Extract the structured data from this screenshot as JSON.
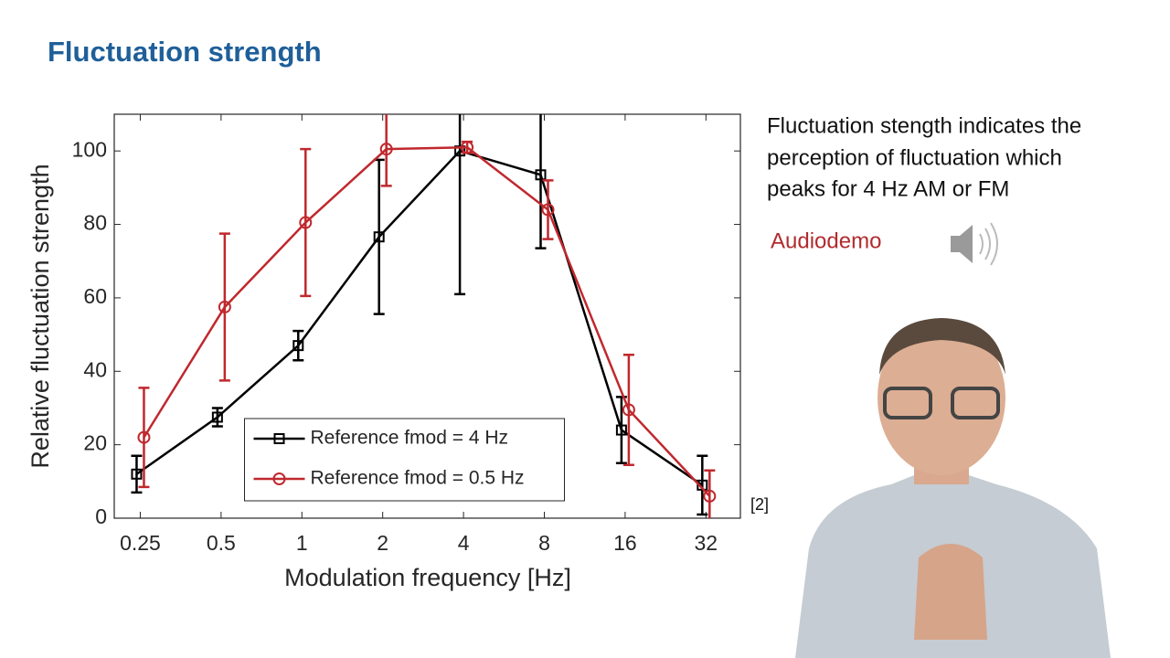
{
  "slide": {
    "title": "Fluctuation strength",
    "text_lines": [
      "Fluctuation stength indicates the",
      "perception of fluctuation  which",
      "peaks for 4 Hz AM or FM"
    ],
    "audio_link": "Audiodemo",
    "citation": "[2]"
  },
  "chart_data": {
    "type": "line",
    "x_label": "Modulation frequency [Hz]",
    "y_label": "Relative fluctuation strength",
    "x": [
      0.25,
      0.5,
      1,
      2,
      4,
      8,
      16,
      32
    ],
    "xscale": "log",
    "xlim": [
      0.2,
      43
    ],
    "xticks": [
      0.25,
      0.5,
      1,
      2,
      4,
      8,
      16,
      32
    ],
    "ylim": [
      0,
      110
    ],
    "yticks": [
      0,
      20,
      40,
      60,
      80,
      100
    ],
    "legend": "lower center",
    "series": [
      {
        "name": "Reference fmod = 4 Hz",
        "color": "#000000",
        "marker": "square",
        "values": [
          12,
          27.5,
          47,
          76.6,
          100,
          93.5,
          24,
          9
        ],
        "errors": [
          5,
          2.5,
          4,
          21,
          39,
          20,
          9,
          8
        ]
      },
      {
        "name": "Reference fmod = 0.5 Hz",
        "color": "#c0282d",
        "marker": "circle",
        "values": [
          22,
          57.5,
          80.5,
          100.5,
          101,
          84,
          29.5,
          6
        ],
        "errors": [
          13.5,
          20,
          20,
          10,
          1.5,
          8,
          15,
          7
        ]
      }
    ]
  }
}
